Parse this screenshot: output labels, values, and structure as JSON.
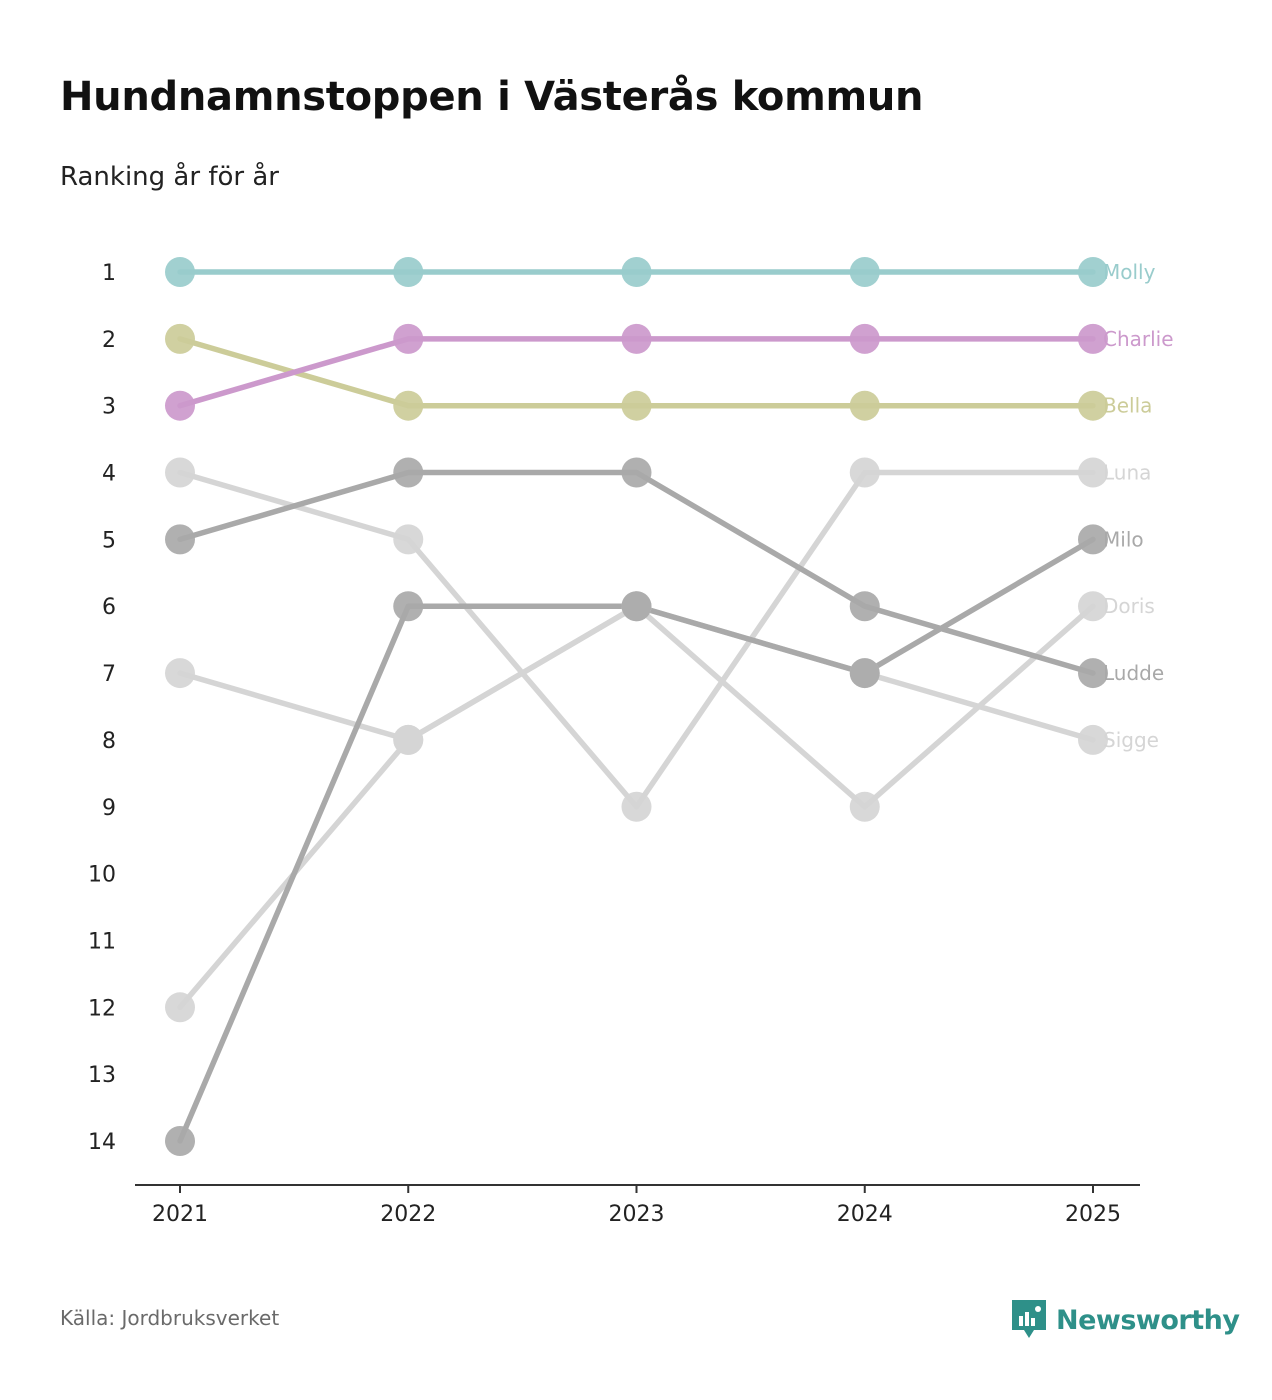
{
  "title": "Hundnamnstoppen i Västerås kommun",
  "subtitle": "Ranking år för år",
  "source": "Källa: Jordbruksverket",
  "brand": {
    "name": "Newsworthy",
    "icon": "newsworthy-logo-icon",
    "color": "#2e9089"
  },
  "chart_data": {
    "type": "line",
    "chart_kind": "bump",
    "x": [
      "2021",
      "2022",
      "2023",
      "2024",
      "2025"
    ],
    "y_ticks": [
      "1",
      "2",
      "3",
      "4",
      "5",
      "6",
      "7",
      "8",
      "9",
      "10",
      "11",
      "12",
      "13",
      "14"
    ],
    "ylim": [
      1,
      14
    ],
    "y_inverted": true,
    "series": [
      {
        "name": "Sigge",
        "ranks": [
          12,
          8,
          6,
          7,
          8
        ],
        "color": "#d5d5d5"
      },
      {
        "name": "Doris",
        "ranks": [
          7,
          8,
          6,
          9,
          6
        ],
        "color": "#d5d5d5"
      },
      {
        "name": "Luna",
        "ranks": [
          4,
          5,
          9,
          4,
          4
        ],
        "color": "#d5d5d5"
      },
      {
        "name": "Ludde",
        "ranks": [
          5,
          4,
          4,
          6,
          7
        ],
        "color": "#a9a9a9"
      },
      {
        "name": "Milo",
        "ranks": [
          14,
          6,
          6,
          7,
          5
        ],
        "color": "#a9a9a9"
      },
      {
        "name": "Bella",
        "ranks": [
          2,
          3,
          3,
          3,
          3
        ],
        "color": "#cccc99"
      },
      {
        "name": "Charlie",
        "ranks": [
          3,
          2,
          2,
          2,
          2
        ],
        "color": "#cc99cc"
      },
      {
        "name": "Molly",
        "ranks": [
          1,
          1,
          1,
          1,
          1
        ],
        "color": "#99cccc"
      }
    ]
  }
}
